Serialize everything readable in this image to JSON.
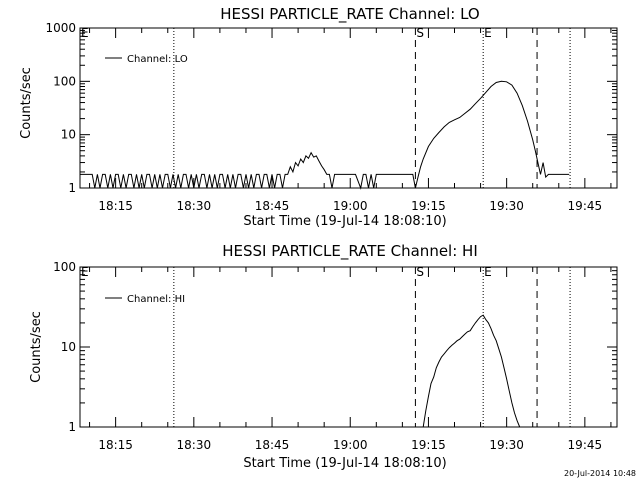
{
  "timestamp": "20-Jul-2014 10:48",
  "chart_data": [
    {
      "type": "line",
      "title": "HESSI PARTICLE_RATE Channel: LO",
      "xlabel": "Start Time (19-Jul-14 18:08:10)",
      "ylabel": "Counts/sec",
      "y_scale": "log",
      "ylim": [
        1,
        1000
      ],
      "y_ticks": [
        "1",
        "10",
        "100",
        "1000"
      ],
      "x_ticks": [
        "18:15",
        "18:30",
        "18:45",
        "19:00",
        "19:15",
        "19:30",
        "19:45"
      ],
      "xlim": [
        "18:08:10",
        "19:51:10"
      ],
      "legend": "Channel: LO",
      "legend_position": "top-left",
      "markers": [
        {
          "label": "E",
          "time": "18:08:10",
          "style": "dotted"
        },
        {
          "label": "",
          "time": "18:26:10",
          "style": "dotted"
        },
        {
          "label": "S",
          "time": "19:12:30",
          "style": "dashed"
        },
        {
          "label": "E",
          "time": "19:25:30",
          "style": "dotted"
        },
        {
          "label": "",
          "time": "19:35:50",
          "style": "dashed"
        },
        {
          "label": "",
          "time": "19:42:10",
          "style": "dotted"
        }
      ],
      "series": [
        {
          "name": "Channel: LO",
          "x": [
            "18:08:10",
            "18:10:30",
            "18:11:00",
            "18:11:30",
            "18:12:00",
            "18:12:30",
            "18:13:00",
            "18:13:30",
            "18:14:00",
            "18:14:30",
            "18:15:00",
            "18:15:30",
            "18:16:00",
            "18:16:30",
            "18:17:00",
            "18:17:30",
            "18:18:00",
            "18:18:30",
            "18:19:00",
            "18:19:30",
            "18:20:00",
            "18:20:30",
            "18:21:00",
            "18:21:30",
            "18:22:00",
            "18:22:30",
            "18:23:00",
            "18:23:30",
            "18:24:00",
            "18:24:30",
            "18:25:00",
            "18:25:30",
            "18:26:00",
            "18:26:30",
            "18:27:00",
            "18:27:30",
            "18:28:00",
            "18:28:30",
            "18:29:00",
            "18:29:30",
            "18:30:00",
            "18:30:30",
            "18:31:00",
            "18:31:30",
            "18:32:00",
            "18:32:30",
            "18:33:00",
            "18:33:30",
            "18:34:00",
            "18:34:30",
            "18:35:00",
            "18:35:30",
            "18:36:00",
            "18:36:30",
            "18:37:00",
            "18:37:30",
            "18:38:00",
            "18:38:30",
            "18:39:00",
            "18:39:30",
            "18:40:00",
            "18:40:30",
            "18:41:00",
            "18:41:30",
            "18:42:00",
            "18:42:30",
            "18:43:00",
            "18:43:30",
            "18:44:00",
            "18:44:30",
            "18:45:00",
            "18:45:30",
            "18:46:00",
            "18:46:30",
            "18:47:00",
            "18:47:30",
            "18:48:00",
            "18:48:30",
            "18:49:00",
            "18:49:30",
            "18:50:00",
            "18:50:30",
            "18:51:00",
            "18:51:30",
            "18:52:00",
            "18:52:30",
            "18:53:00",
            "18:53:30",
            "18:54:00",
            "18:54:30",
            "18:55:00",
            "18:55:30",
            "18:56:00",
            "18:56:30",
            "18:57:00",
            "18:58:00",
            "18:59:00",
            "19:00:00",
            "19:01:00",
            "19:02:00",
            "19:02:30",
            "19:03:00",
            "19:03:30",
            "19:04:00",
            "19:04:30",
            "19:05:00",
            "19:05:30",
            "19:06:00",
            "19:07:00",
            "19:08:00",
            "19:09:00",
            "19:10:00",
            "19:11:00",
            "19:12:00",
            "19:12:30",
            "19:13:00",
            "19:13:30",
            "19:14:00",
            "19:15:00",
            "19:16:00",
            "19:17:00",
            "19:18:00",
            "19:19:00",
            "19:20:00",
            "19:21:00",
            "19:22:00",
            "19:23:00",
            "19:24:00",
            "19:25:00",
            "19:26:00",
            "19:27:00",
            "19:28:00",
            "19:29:00",
            "19:30:00",
            "19:31:00",
            "19:32:00",
            "19:33:00",
            "19:34:00",
            "19:35:00",
            "19:35:30",
            "19:36:00",
            "19:36:30",
            "19:37:00",
            "19:37:30",
            "19:38:00",
            "19:39:00",
            "19:40:00",
            "19:41:00",
            "19:42:00"
          ],
          "values": [
            1.8,
            1.8,
            1,
            1.8,
            1,
            1.8,
            1.8,
            1,
            1.8,
            1,
            1.8,
            1.8,
            1,
            1.8,
            1,
            1.8,
            1.8,
            1,
            1.8,
            1,
            1.8,
            1,
            1.8,
            1.8,
            1,
            1.8,
            1,
            1.8,
            1,
            1.8,
            1.8,
            1,
            1.8,
            1,
            1.8,
            1,
            1.8,
            1.8,
            1,
            1.8,
            1,
            1.8,
            1,
            1.8,
            1.8,
            1,
            1.8,
            1,
            1.8,
            1,
            1.8,
            1.8,
            1,
            1.8,
            1,
            1.8,
            1,
            1.8,
            1.8,
            1,
            1.8,
            1,
            1.8,
            1,
            1.8,
            1.8,
            1,
            1.8,
            1.8,
            1,
            1.8,
            1,
            1.8,
            1.8,
            1,
            1.8,
            1.8,
            2.5,
            2,
            3,
            2.6,
            3.5,
            3,
            4,
            3.6,
            4.6,
            3.8,
            4,
            3.2,
            2.6,
            2.2,
            1.8,
            1.8,
            1,
            1.8,
            1.8,
            1.8,
            1.8,
            1.8,
            1,
            1.8,
            1.8,
            1,
            1.8,
            1,
            1.8,
            1.8,
            1.8,
            1.8,
            1.8,
            1.8,
            1.8,
            1.8,
            1.8,
            1,
            1.6,
            2.5,
            3.5,
            6,
            8.5,
            11,
            14,
            17,
            19,
            21,
            25,
            30,
            38,
            48,
            62,
            80,
            95,
            100,
            98,
            85,
            60,
            35,
            18,
            8,
            5,
            3,
            1.8,
            3,
            1.6,
            1.8,
            1.8,
            1.8,
            1.8,
            1.8
          ]
        }
      ]
    },
    {
      "type": "line",
      "title": "HESSI PARTICLE_RATE Channel: HI",
      "xlabel": "Start Time (19-Jul-14 18:08:10)",
      "ylabel": "Counts/sec",
      "y_scale": "log",
      "ylim": [
        1,
        100
      ],
      "y_ticks": [
        "1",
        "10",
        "100"
      ],
      "x_ticks": [
        "18:15",
        "18:30",
        "18:45",
        "19:00",
        "19:15",
        "19:30",
        "19:45"
      ],
      "xlim": [
        "18:08:10",
        "19:51:10"
      ],
      "legend": "Channel: HI",
      "legend_position": "top-left",
      "markers": [
        {
          "label": "E",
          "time": "18:08:10",
          "style": "dotted"
        },
        {
          "label": "",
          "time": "18:26:10",
          "style": "dotted"
        },
        {
          "label": "S",
          "time": "19:12:30",
          "style": "dashed"
        },
        {
          "label": "E",
          "time": "19:25:30",
          "style": "dotted"
        },
        {
          "label": "",
          "time": "19:35:50",
          "style": "dashed"
        },
        {
          "label": "",
          "time": "19:42:10",
          "style": "dotted"
        }
      ],
      "series": [
        {
          "name": "Channel: HI",
          "x": [
            "19:14:00",
            "19:14:30",
            "19:15:00",
            "19:15:30",
            "19:16:00",
            "19:16:30",
            "19:17:00",
            "19:17:30",
            "19:18:00",
            "19:18:30",
            "19:19:00",
            "19:19:30",
            "19:20:00",
            "19:20:30",
            "19:21:00",
            "19:21:30",
            "19:22:00",
            "19:22:30",
            "19:23:00",
            "19:23:30",
            "19:24:00",
            "19:24:30",
            "19:25:00",
            "19:25:30",
            "19:26:00",
            "19:26:30",
            "19:27:00",
            "19:27:30",
            "19:28:00",
            "19:28:30",
            "19:29:00",
            "19:29:30",
            "19:30:00",
            "19:30:30",
            "19:31:00",
            "19:31:30",
            "19:32:00",
            "19:32:30"
          ],
          "values": [
            1,
            1.6,
            2.4,
            3.5,
            4.2,
            5.5,
            6.5,
            7.5,
            8.2,
            9,
            9.8,
            10.5,
            11.2,
            12,
            12.5,
            13.5,
            14.5,
            15.5,
            16,
            18,
            20,
            22,
            24,
            25,
            22,
            20,
            17,
            14,
            12,
            9.5,
            7.5,
            5.5,
            4,
            2.8,
            2,
            1.5,
            1.2,
            1
          ]
        }
      ]
    }
  ]
}
